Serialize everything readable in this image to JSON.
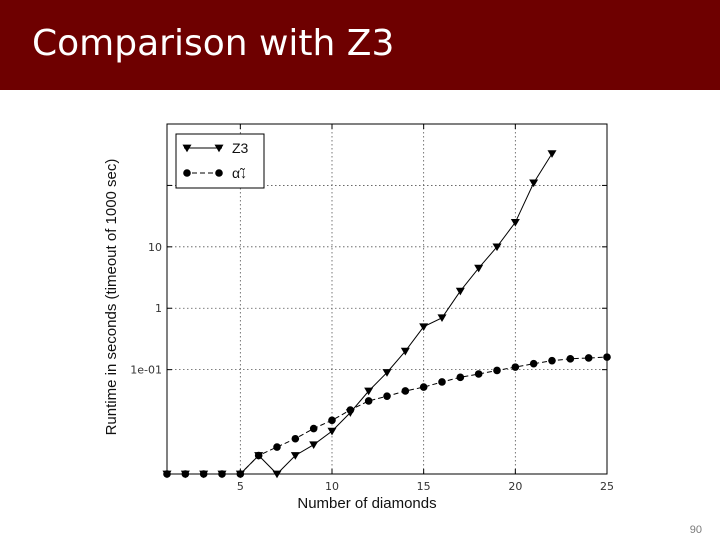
{
  "slide": {
    "title": "Comparison with Z3",
    "page_number": "90"
  },
  "colors": {
    "title_bar": "#6e0000",
    "title_text": "#ffffff",
    "series": "#000000",
    "grid": "#555555"
  },
  "chart_data": {
    "type": "line",
    "title": "",
    "xlabel": "Number of diamonds",
    "ylabel": "Runtime in seconds (timeout of 1000 sec)",
    "x_scale": "linear",
    "y_scale": "log",
    "xlim": [
      1,
      25
    ],
    "ylim": [
      0.002,
      1000
    ],
    "x_ticks": [
      {
        "value": 5,
        "label": "5"
      },
      {
        "value": 10,
        "label": "10"
      },
      {
        "value": 15,
        "label": "15"
      },
      {
        "value": 20,
        "label": "20"
      },
      {
        "value": 25,
        "label": "25"
      }
    ],
    "y_ticks": [
      {
        "value": 0.1,
        "label": "1e-01"
      },
      {
        "value": 1,
        "label": "1"
      },
      {
        "value": 10,
        "label": "10"
      },
      {
        "value": 100,
        "label": ""
      }
    ],
    "grid": true,
    "grid_style": "dotted",
    "legend_position": "top-left",
    "series": [
      {
        "name": "Z3",
        "marker": "triangle-down",
        "line_style": "solid",
        "x": [
          1,
          2,
          3,
          4,
          5,
          6,
          7,
          8,
          9,
          10,
          11,
          12,
          13,
          14,
          15,
          16,
          17,
          18,
          19,
          20,
          21,
          22
        ],
        "y": [
          0.002,
          0.002,
          0.002,
          0.002,
          0.002,
          0.004,
          0.002,
          0.004,
          0.006,
          0.01,
          0.02,
          0.045,
          0.09,
          0.2,
          0.5,
          0.7,
          1.9,
          4.5,
          10,
          25,
          110,
          330
        ]
      },
      {
        "name": "α̃↓",
        "marker": "circle",
        "line_style": "dashed",
        "x": [
          1,
          2,
          3,
          4,
          5,
          6,
          7,
          8,
          9,
          10,
          11,
          12,
          13,
          14,
          15,
          16,
          17,
          18,
          19,
          20,
          21,
          22,
          23,
          24,
          25
        ],
        "y": [
          0.002,
          0.002,
          0.002,
          0.002,
          0.002,
          0.004,
          0.0055,
          0.0075,
          0.011,
          0.015,
          0.022,
          0.031,
          0.037,
          0.045,
          0.052,
          0.063,
          0.075,
          0.085,
          0.097,
          0.11,
          0.125,
          0.14,
          0.15,
          0.155,
          0.16
        ]
      }
    ]
  }
}
